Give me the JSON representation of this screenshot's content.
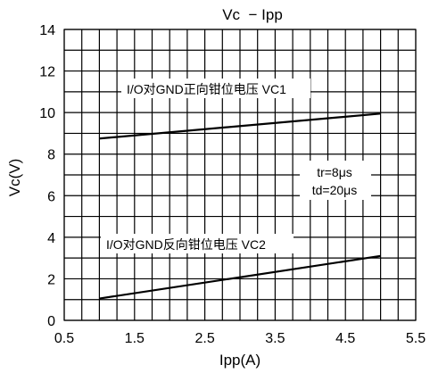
{
  "chart_data": {
    "type": "line",
    "title": "Vc  − Ipp",
    "xlabel": "Ipp(A)",
    "ylabel": "Vc(V)",
    "xlim": [
      0.5,
      5.5
    ],
    "ylim": [
      0,
      14
    ],
    "x_ticks": [
      "0.5",
      "1.5",
      "2.5",
      "3.5",
      "4.5",
      "5.5"
    ],
    "y_ticks": [
      "0",
      "2",
      "4",
      "6",
      "8",
      "10",
      "12",
      "14"
    ],
    "grid": true,
    "series": [
      {
        "name": "I/O对GND正向钳位电压 VC1",
        "x": [
          1,
          5
        ],
        "y": [
          8.75,
          9.95
        ]
      },
      {
        "name": "I/O对GND反向钳位电压 VC2",
        "x": [
          1,
          5
        ],
        "y": [
          1.05,
          3.1
        ]
      }
    ],
    "annotations": [
      "tr=8μs",
      "td=20μs"
    ]
  }
}
